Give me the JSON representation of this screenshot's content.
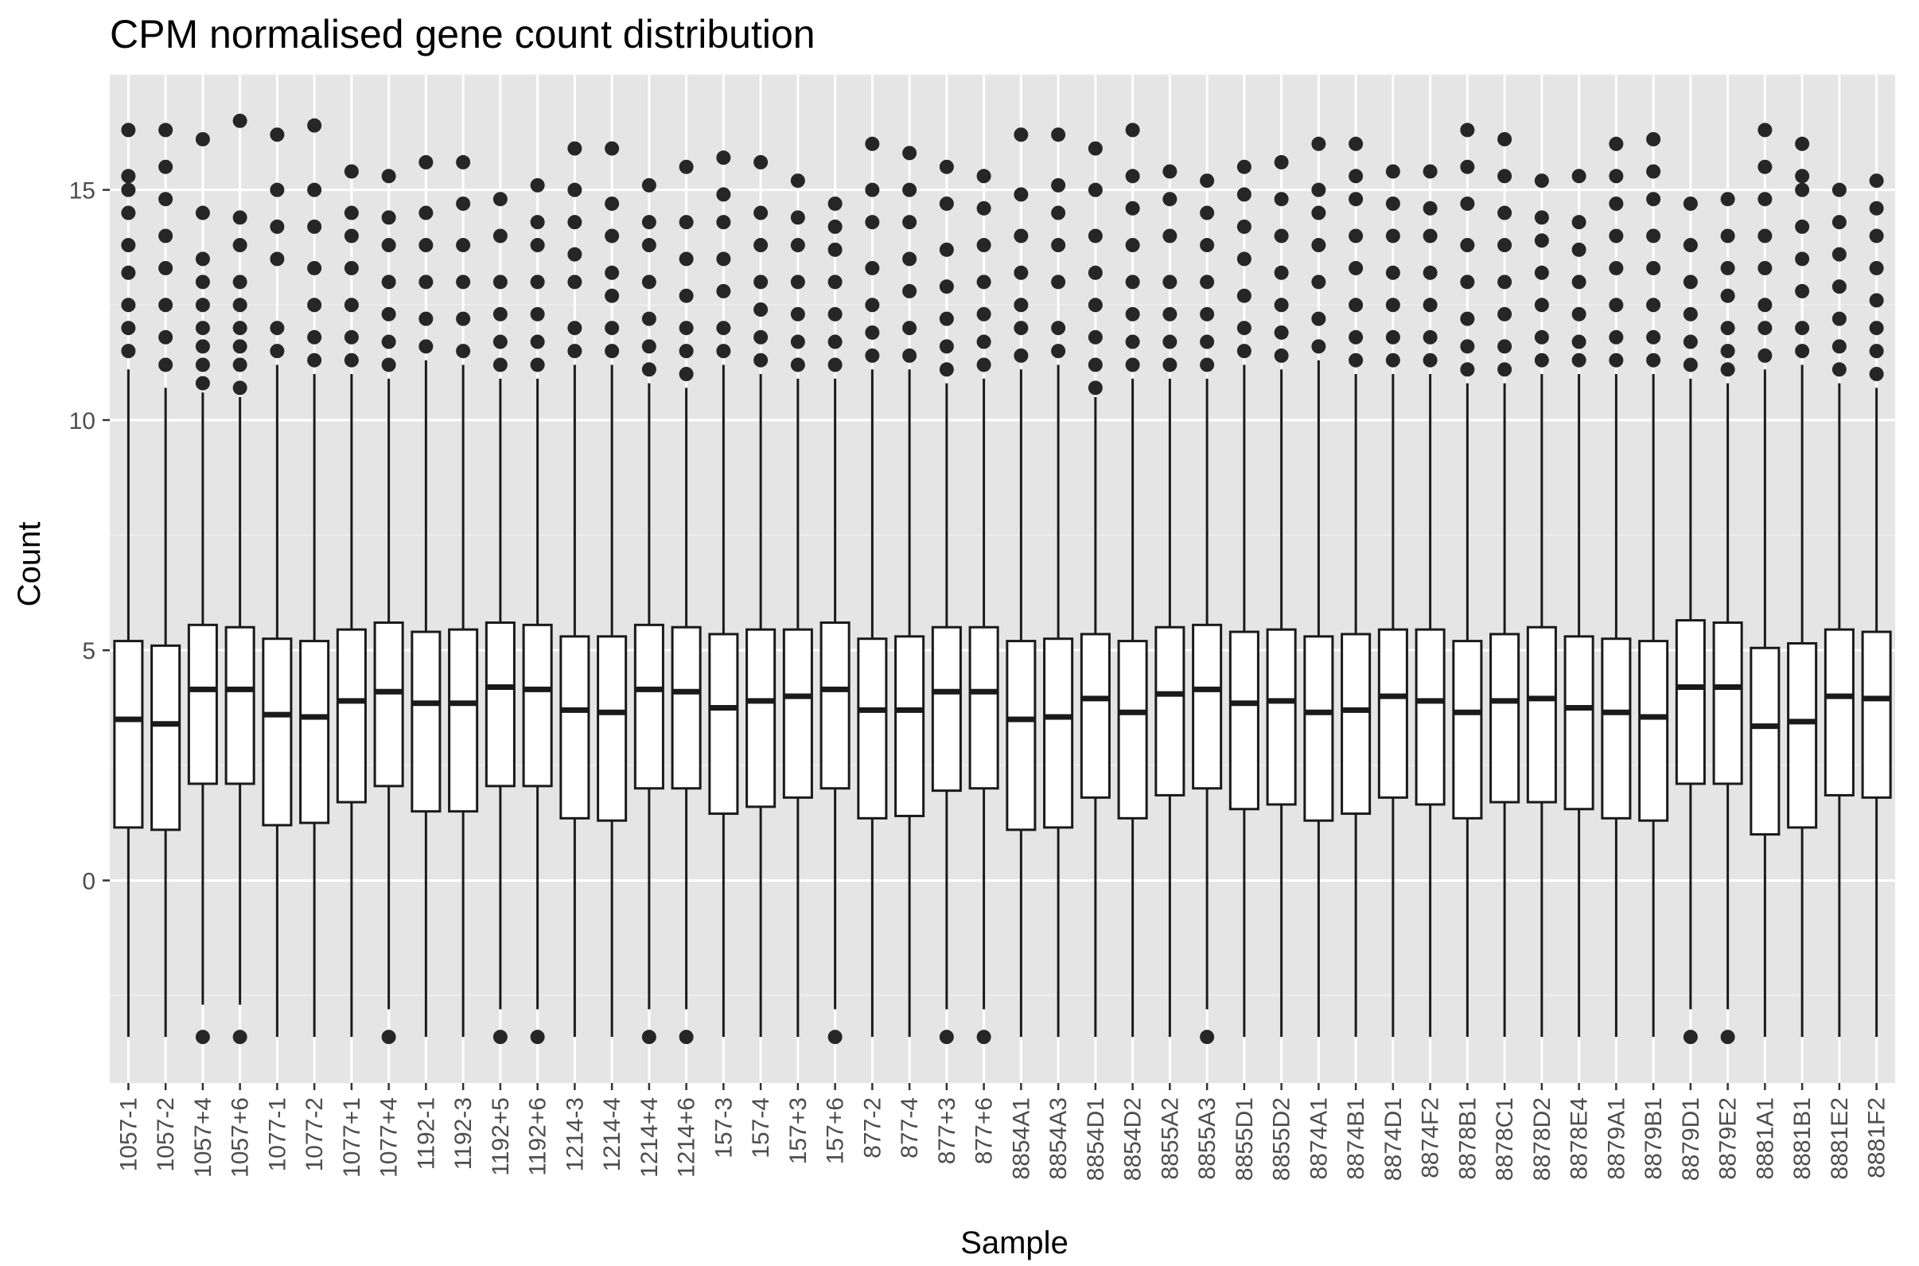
{
  "chart_data": {
    "type": "boxplot",
    "title": "CPM normalised gene count distribution",
    "xlabel": "Sample",
    "ylabel": "Count",
    "ylim": [
      -4.4,
      17.5
    ],
    "y_ticks": [
      0,
      5,
      10,
      15
    ],
    "grid": true,
    "legend": "none",
    "colors": {
      "panel_background": "#e5e5e5",
      "grid_major": "#ffffff",
      "grid_minor": "#f0f0f0",
      "box_fill": "#ffffff",
      "box_stroke": "#1a1a1a",
      "outlier": "#262626"
    },
    "categories": [
      "1057-1",
      "1057-2",
      "1057+4",
      "1057+6",
      "1077-1",
      "1077-2",
      "1077+1",
      "1077+4",
      "1192-1",
      "1192-3",
      "1192+5",
      "1192+6",
      "1214-3",
      "1214-4",
      "1214+4",
      "1214+6",
      "157-3",
      "157-4",
      "157+3",
      "157+6",
      "877-2",
      "877-4",
      "877+3",
      "877+6",
      "8854A1",
      "8854A3",
      "8854D1",
      "8854D2",
      "8855A2",
      "8855A3",
      "8855D1",
      "8855D2",
      "8874A1",
      "8874B1",
      "8874D1",
      "8874F2",
      "8878B1",
      "8878C1",
      "8878D2",
      "8878E4",
      "8879A1",
      "8879B1",
      "8879D1",
      "8879E2",
      "8881A1",
      "8881B1",
      "8881E2",
      "8881F2"
    ],
    "boxes": [
      {
        "q1": 1.15,
        "median": 3.5,
        "q3": 5.2,
        "whisker_low": -3.4,
        "whisker_high": 11.1,
        "outliers_high": [
          11.5,
          12.0,
          12.5,
          13.2,
          13.8,
          14.5,
          15.0,
          15.3,
          16.3
        ],
        "outliers_low": []
      },
      {
        "q1": 1.1,
        "median": 3.4,
        "q3": 5.1,
        "whisker_low": -3.4,
        "whisker_high": 10.7,
        "outliers_high": [
          11.2,
          11.8,
          12.5,
          13.3,
          14.0,
          14.8,
          15.5,
          16.3
        ],
        "outliers_low": []
      },
      {
        "q1": 2.1,
        "median": 4.15,
        "q3": 5.55,
        "whisker_low": -2.7,
        "whisker_high": 10.6,
        "outliers_high": [
          10.8,
          11.2,
          11.6,
          12.0,
          12.5,
          13.0,
          13.5,
          14.5,
          16.1
        ],
        "outliers_low": [
          -3.4
        ]
      },
      {
        "q1": 2.1,
        "median": 4.15,
        "q3": 5.5,
        "whisker_low": -2.7,
        "whisker_high": 10.5,
        "outliers_high": [
          10.7,
          11.2,
          11.6,
          12.0,
          12.5,
          13.0,
          13.8,
          14.4,
          16.5
        ],
        "outliers_low": [
          -3.4
        ]
      },
      {
        "q1": 1.2,
        "median": 3.6,
        "q3": 5.25,
        "whisker_low": -3.4,
        "whisker_high": 11.2,
        "outliers_high": [
          11.5,
          12.0,
          13.5,
          14.2,
          15.0,
          16.2
        ],
        "outliers_low": []
      },
      {
        "q1": 1.25,
        "median": 3.55,
        "q3": 5.2,
        "whisker_low": -3.4,
        "whisker_high": 11.0,
        "outliers_high": [
          11.3,
          11.8,
          12.5,
          13.3,
          14.2,
          15.0,
          16.4
        ],
        "outliers_low": []
      },
      {
        "q1": 1.7,
        "median": 3.9,
        "q3": 5.45,
        "whisker_low": -3.4,
        "whisker_high": 11.0,
        "outliers_high": [
          11.3,
          11.8,
          12.5,
          13.3,
          14.0,
          14.5,
          15.4
        ],
        "outliers_low": []
      },
      {
        "q1": 2.05,
        "median": 4.1,
        "q3": 5.6,
        "whisker_low": -2.8,
        "whisker_high": 10.9,
        "outliers_high": [
          11.2,
          11.7,
          12.3,
          13.0,
          13.8,
          14.4,
          15.3
        ],
        "outliers_low": [
          -3.4
        ]
      },
      {
        "q1": 1.5,
        "median": 3.85,
        "q3": 5.4,
        "whisker_low": -3.4,
        "whisker_high": 11.3,
        "outliers_high": [
          11.6,
          12.2,
          13.0,
          13.8,
          14.5,
          15.6
        ],
        "outliers_low": []
      },
      {
        "q1": 1.5,
        "median": 3.85,
        "q3": 5.45,
        "whisker_low": -3.4,
        "whisker_high": 11.2,
        "outliers_high": [
          11.5,
          12.2,
          13.0,
          13.8,
          14.7,
          15.6
        ],
        "outliers_low": []
      },
      {
        "q1": 2.05,
        "median": 4.2,
        "q3": 5.6,
        "whisker_low": -2.8,
        "whisker_high": 10.9,
        "outliers_high": [
          11.2,
          11.7,
          12.3,
          13.0,
          14.0,
          14.8
        ],
        "outliers_low": [
          -3.4
        ]
      },
      {
        "q1": 2.05,
        "median": 4.15,
        "q3": 5.55,
        "whisker_low": -2.8,
        "whisker_high": 10.9,
        "outliers_high": [
          11.2,
          11.7,
          12.3,
          13.0,
          13.8,
          14.3,
          15.1
        ],
        "outliers_low": [
          -3.4
        ]
      },
      {
        "q1": 1.35,
        "median": 3.7,
        "q3": 5.3,
        "whisker_low": -3.4,
        "whisker_high": 11.2,
        "outliers_high": [
          11.5,
          12.0,
          13.0,
          13.6,
          14.3,
          15.0,
          15.9
        ],
        "outliers_low": []
      },
      {
        "q1": 1.3,
        "median": 3.65,
        "q3": 5.3,
        "whisker_low": -3.4,
        "whisker_high": 11.2,
        "outliers_high": [
          11.5,
          12.0,
          12.7,
          13.2,
          14.0,
          14.7,
          15.9
        ],
        "outliers_low": []
      },
      {
        "q1": 2.0,
        "median": 4.15,
        "q3": 5.55,
        "whisker_low": -2.8,
        "whisker_high": 10.8,
        "outliers_high": [
          11.1,
          11.6,
          12.2,
          13.0,
          13.8,
          14.3,
          15.1
        ],
        "outliers_low": [
          -3.4
        ]
      },
      {
        "q1": 2.0,
        "median": 4.1,
        "q3": 5.5,
        "whisker_low": -2.8,
        "whisker_high": 10.7,
        "outliers_high": [
          11.0,
          11.5,
          12.0,
          12.7,
          13.5,
          14.3,
          15.5
        ],
        "outliers_low": [
          -3.4
        ]
      },
      {
        "q1": 1.45,
        "median": 3.75,
        "q3": 5.35,
        "whisker_low": -3.4,
        "whisker_high": 11.2,
        "outliers_high": [
          11.5,
          12.0,
          12.8,
          13.5,
          14.3,
          14.9,
          15.7
        ],
        "outliers_low": []
      },
      {
        "q1": 1.6,
        "median": 3.9,
        "q3": 5.45,
        "whisker_low": -3.4,
        "whisker_high": 11.0,
        "outliers_high": [
          11.3,
          11.8,
          12.4,
          13.0,
          13.8,
          14.5,
          15.6
        ],
        "outliers_low": []
      },
      {
        "q1": 1.8,
        "median": 4.0,
        "q3": 5.45,
        "whisker_low": -3.4,
        "whisker_high": 10.9,
        "outliers_high": [
          11.2,
          11.7,
          12.3,
          13.0,
          13.8,
          14.4,
          15.2
        ],
        "outliers_low": []
      },
      {
        "q1": 2.0,
        "median": 4.15,
        "q3": 5.6,
        "whisker_low": -2.8,
        "whisker_high": 10.9,
        "outliers_high": [
          11.2,
          11.7,
          12.3,
          13.0,
          13.7,
          14.2,
          14.7
        ],
        "outliers_low": [
          -3.4
        ]
      },
      {
        "q1": 1.35,
        "median": 3.7,
        "q3": 5.25,
        "whisker_low": -3.4,
        "whisker_high": 11.1,
        "outliers_high": [
          11.4,
          11.9,
          12.5,
          13.3,
          14.3,
          15.0,
          16.0
        ],
        "outliers_low": []
      },
      {
        "q1": 1.4,
        "median": 3.7,
        "q3": 5.3,
        "whisker_low": -3.4,
        "whisker_high": 11.1,
        "outliers_high": [
          11.4,
          12.0,
          12.8,
          13.5,
          14.3,
          15.0,
          15.8
        ],
        "outliers_low": []
      },
      {
        "q1": 1.95,
        "median": 4.1,
        "q3": 5.5,
        "whisker_low": -2.8,
        "whisker_high": 10.8,
        "outliers_high": [
          11.1,
          11.6,
          12.2,
          12.9,
          13.7,
          14.7,
          15.5
        ],
        "outliers_low": [
          -3.4
        ]
      },
      {
        "q1": 2.0,
        "median": 4.1,
        "q3": 5.5,
        "whisker_low": -2.8,
        "whisker_high": 10.9,
        "outliers_high": [
          11.2,
          11.7,
          12.3,
          13.0,
          13.8,
          14.6,
          15.3
        ],
        "outliers_low": [
          -3.4
        ]
      },
      {
        "q1": 1.1,
        "median": 3.5,
        "q3": 5.2,
        "whisker_low": -3.4,
        "whisker_high": 11.1,
        "outliers_high": [
          11.4,
          12.0,
          12.5,
          13.2,
          14.0,
          14.9,
          16.2
        ],
        "outliers_low": []
      },
      {
        "q1": 1.15,
        "median": 3.55,
        "q3": 5.25,
        "whisker_low": -3.4,
        "whisker_high": 11.2,
        "outliers_high": [
          11.5,
          12.0,
          13.0,
          13.8,
          14.5,
          15.1,
          16.2
        ],
        "outliers_low": []
      },
      {
        "q1": 1.8,
        "median": 3.95,
        "q3": 5.35,
        "whisker_low": -3.4,
        "whisker_high": 10.5,
        "outliers_high": [
          10.7,
          11.2,
          11.8,
          12.5,
          13.2,
          14.0,
          15.0,
          15.9
        ],
        "outliers_low": []
      },
      {
        "q1": 1.35,
        "median": 3.65,
        "q3": 5.2,
        "whisker_low": -3.4,
        "whisker_high": 10.9,
        "outliers_high": [
          11.2,
          11.7,
          12.3,
          13.0,
          13.8,
          14.6,
          15.3,
          16.3
        ],
        "outliers_low": []
      },
      {
        "q1": 1.85,
        "median": 4.05,
        "q3": 5.5,
        "whisker_low": -3.4,
        "whisker_high": 10.9,
        "outliers_high": [
          11.2,
          11.7,
          12.3,
          13.0,
          14.0,
          14.8,
          15.4
        ],
        "outliers_low": []
      },
      {
        "q1": 2.0,
        "median": 4.15,
        "q3": 5.55,
        "whisker_low": -2.8,
        "whisker_high": 10.9,
        "outliers_high": [
          11.2,
          11.7,
          12.3,
          13.0,
          13.8,
          14.5,
          15.2
        ],
        "outliers_low": [
          -3.4
        ]
      },
      {
        "q1": 1.55,
        "median": 3.85,
        "q3": 5.4,
        "whisker_low": -3.4,
        "whisker_high": 11.2,
        "outliers_high": [
          11.5,
          12.0,
          12.7,
          13.5,
          14.2,
          14.9,
          15.5
        ],
        "outliers_low": []
      },
      {
        "q1": 1.65,
        "median": 3.9,
        "q3": 5.45,
        "whisker_low": -3.4,
        "whisker_high": 11.1,
        "outliers_high": [
          11.4,
          11.9,
          12.5,
          13.2,
          14.0,
          14.8,
          15.6
        ],
        "outliers_low": []
      },
      {
        "q1": 1.3,
        "median": 3.65,
        "q3": 5.3,
        "whisker_low": -3.4,
        "whisker_high": 11.3,
        "outliers_high": [
          11.6,
          12.2,
          13.0,
          13.8,
          14.5,
          15.0,
          16.0
        ],
        "outliers_low": []
      },
      {
        "q1": 1.45,
        "median": 3.7,
        "q3": 5.35,
        "whisker_low": -3.4,
        "whisker_high": 11.0,
        "outliers_high": [
          11.3,
          11.8,
          12.5,
          13.3,
          14.0,
          14.8,
          15.3,
          16.0
        ],
        "outliers_low": []
      },
      {
        "q1": 1.8,
        "median": 4.0,
        "q3": 5.45,
        "whisker_low": -3.4,
        "whisker_high": 11.0,
        "outliers_high": [
          11.3,
          11.8,
          12.5,
          13.2,
          14.0,
          14.7,
          15.4
        ],
        "outliers_low": []
      },
      {
        "q1": 1.65,
        "median": 3.9,
        "q3": 5.45,
        "whisker_low": -3.4,
        "whisker_high": 11.0,
        "outliers_high": [
          11.3,
          11.8,
          12.5,
          13.2,
          14.0,
          14.6,
          15.4
        ],
        "outliers_low": []
      },
      {
        "q1": 1.35,
        "median": 3.65,
        "q3": 5.2,
        "whisker_low": -3.4,
        "whisker_high": 10.8,
        "outliers_high": [
          11.1,
          11.6,
          12.2,
          13.0,
          13.8,
          14.7,
          15.5,
          16.3
        ],
        "outliers_low": []
      },
      {
        "q1": 1.7,
        "median": 3.9,
        "q3": 5.35,
        "whisker_low": -3.4,
        "whisker_high": 10.8,
        "outliers_high": [
          11.1,
          11.6,
          12.3,
          13.0,
          13.8,
          14.5,
          15.3,
          16.1
        ],
        "outliers_low": []
      },
      {
        "q1": 1.7,
        "median": 3.95,
        "q3": 5.5,
        "whisker_low": -3.4,
        "whisker_high": 11.0,
        "outliers_high": [
          11.3,
          11.8,
          12.5,
          13.2,
          13.9,
          14.4,
          15.2
        ],
        "outliers_low": []
      },
      {
        "q1": 1.55,
        "median": 3.75,
        "q3": 5.3,
        "whisker_low": -3.4,
        "whisker_high": 11.0,
        "outliers_high": [
          11.3,
          11.7,
          12.3,
          13.0,
          13.7,
          14.3,
          15.3
        ],
        "outliers_low": []
      },
      {
        "q1": 1.35,
        "median": 3.65,
        "q3": 5.25,
        "whisker_low": -3.4,
        "whisker_high": 11.0,
        "outliers_high": [
          11.3,
          11.8,
          12.5,
          13.3,
          14.0,
          14.7,
          15.3,
          16.0
        ],
        "outliers_low": []
      },
      {
        "q1": 1.3,
        "median": 3.55,
        "q3": 5.2,
        "whisker_low": -3.4,
        "whisker_high": 11.0,
        "outliers_high": [
          11.3,
          11.8,
          12.5,
          13.3,
          14.0,
          14.8,
          15.4,
          16.1
        ],
        "outliers_low": []
      },
      {
        "q1": 2.1,
        "median": 4.2,
        "q3": 5.65,
        "whisker_low": -2.8,
        "whisker_high": 10.9,
        "outliers_high": [
          11.2,
          11.7,
          12.3,
          13.0,
          13.8,
          14.7
        ],
        "outliers_low": [
          -3.4
        ]
      },
      {
        "q1": 2.1,
        "median": 4.2,
        "q3": 5.6,
        "whisker_low": -2.8,
        "whisker_high": 10.8,
        "outliers_high": [
          11.1,
          11.5,
          12.0,
          12.7,
          13.3,
          14.0,
          14.8
        ],
        "outliers_low": [
          -3.4
        ]
      },
      {
        "q1": 1.0,
        "median": 3.35,
        "q3": 5.05,
        "whisker_low": -3.4,
        "whisker_high": 11.1,
        "outliers_high": [
          11.4,
          12.0,
          12.5,
          13.3,
          14.0,
          14.8,
          15.5,
          16.3
        ],
        "outliers_low": []
      },
      {
        "q1": 1.15,
        "median": 3.45,
        "q3": 5.15,
        "whisker_low": -3.4,
        "whisker_high": 11.2,
        "outliers_high": [
          11.5,
          12.0,
          12.8,
          13.5,
          14.2,
          15.0,
          15.3,
          16.0
        ],
        "outliers_low": []
      },
      {
        "q1": 1.85,
        "median": 4.0,
        "q3": 5.45,
        "whisker_low": -3.4,
        "whisker_high": 10.8,
        "outliers_high": [
          11.1,
          11.6,
          12.2,
          12.9,
          13.6,
          14.3,
          15.0
        ],
        "outliers_low": []
      },
      {
        "q1": 1.8,
        "median": 3.95,
        "q3": 5.4,
        "whisker_low": -3.4,
        "whisker_high": 10.7,
        "outliers_high": [
          11.0,
          11.5,
          12.0,
          12.6,
          13.3,
          14.0,
          14.6,
          15.2
        ],
        "outliers_low": []
      }
    ]
  }
}
